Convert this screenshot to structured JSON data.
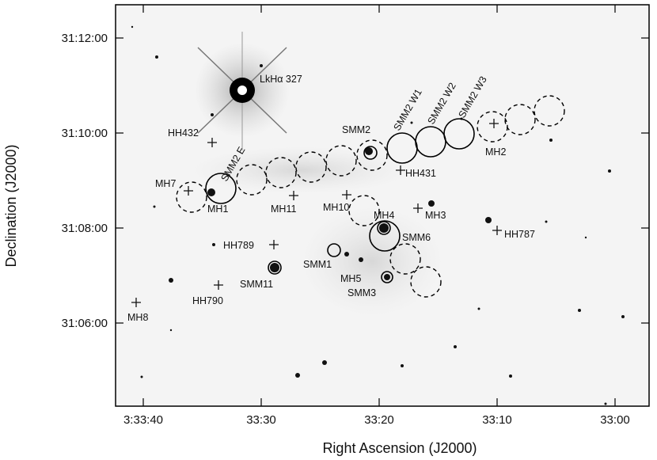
{
  "figure": {
    "xlabel": "Right Ascension (J2000)",
    "ylabel": "Declination (J2000)",
    "x_ticks": [
      "3:33:40",
      "33:30",
      "33:20",
      "33:10",
      "33:00"
    ],
    "y_ticks": [
      "31:12:00",
      "31:10:00",
      "31:08:00",
      "31:06:00"
    ],
    "labels": {
      "lkha": "LkHα 327",
      "hh432": "HH432",
      "smm2e": "SMM2 E",
      "smm2": "SMM2",
      "w1": "SMM2 W1",
      "w2": "SMM2 W2",
      "w3": "SMM2 W3",
      "mh2": "MH2",
      "hh431": "HH431",
      "mh7": "MH7",
      "mh1": "MH1",
      "mh11": "MH11",
      "mh10": "MH10",
      "mh4": "MH4",
      "mh3": "MH3",
      "smm6": "SMM6",
      "hh787": "HH787",
      "hh789": "HH789",
      "smm1": "SMM1",
      "mh5": "MH5",
      "smm3": "SMM3",
      "smm11": "SMM11",
      "hh790": "HH790",
      "mh8": "MH8"
    }
  }
}
